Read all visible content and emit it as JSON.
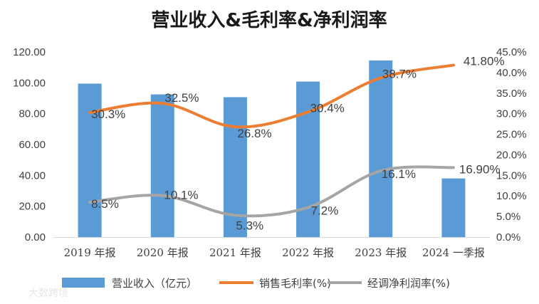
{
  "chart_data": {
    "type": "bar+line",
    "title": "营业收入&毛利率&净利润率",
    "categories": [
      "2019 年报",
      "2020 年报",
      "2021 年报",
      "2022 年报",
      "2023 年报",
      "2024 一季报"
    ],
    "y_left": {
      "ylim": [
        0,
        120
      ],
      "ticks": [
        "0.00",
        "20.00",
        "40.00",
        "60.00",
        "80.00",
        "100.00",
        "120.00"
      ]
    },
    "y_right": {
      "ylim": [
        0,
        45
      ],
      "ticks": [
        "0.0%",
        "5.0%",
        "10.0%",
        "15.0%",
        "20.0%",
        "25.0%",
        "30.0%",
        "35.0%",
        "40.0%",
        "45.0%"
      ]
    },
    "series": [
      {
        "name": "营业收入（亿元）",
        "type": "bar",
        "axis": "left",
        "color": "#5b9bd5",
        "values": [
          99.5,
          92.5,
          90.7,
          100.8,
          114.5,
          38.0
        ]
      },
      {
        "name": "销售毛利率(%)",
        "type": "line",
        "axis": "right",
        "color": "#ed7d31",
        "values": [
          30.3,
          32.5,
          26.8,
          30.4,
          38.7,
          41.8
        ],
        "labels": [
          "30.3%",
          "32.5%",
          "26.8%",
          "30.4%",
          "38.7%",
          "41.80%"
        ]
      },
      {
        "name": "经调净利润率(%)",
        "type": "line",
        "axis": "right",
        "color": "#a5a5a5",
        "values": [
          8.5,
          10.1,
          5.3,
          7.2,
          16.1,
          16.9
        ],
        "labels": [
          "8.5%",
          "10.1%",
          "5.3%",
          "7.2%",
          "16.1%",
          "16.90%"
        ]
      }
    ],
    "legend": "bottom",
    "watermark": "大数跨境"
  }
}
